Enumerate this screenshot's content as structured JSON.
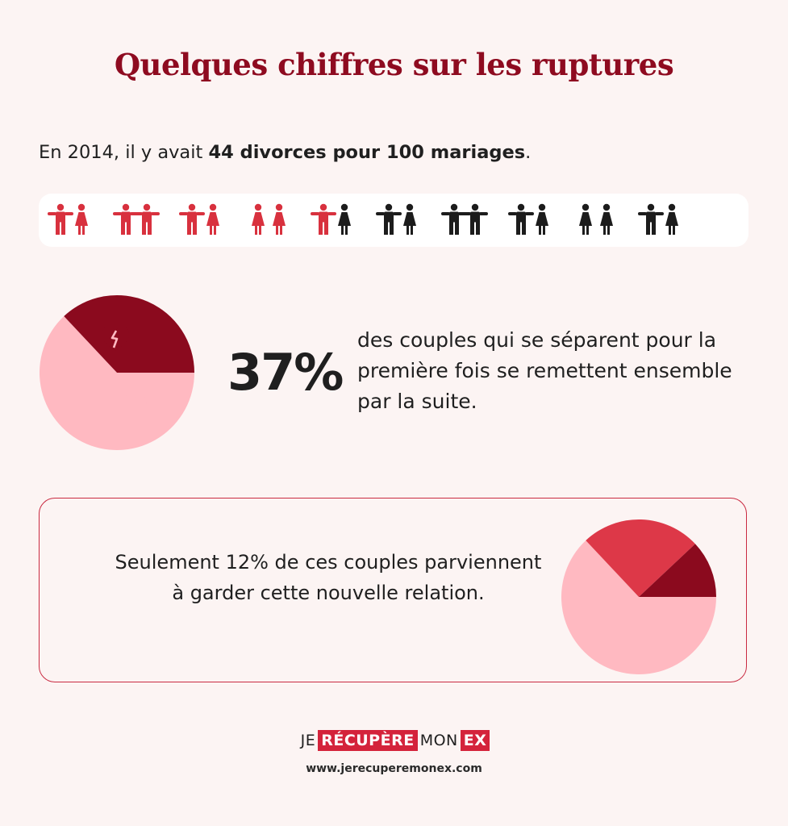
{
  "header": {
    "title": "Quelques chiffres sur les ruptures"
  },
  "stat1": {
    "prefix": "En 2014, il y avait ",
    "bold": "44 divorces pour 100 mariages",
    "suffix": "."
  },
  "stat2": {
    "value": "37%",
    "text": "des couples qui se séparent pour la première fois se remettent ensemble par la suite."
  },
  "stat3": {
    "text": "Seulement 12% de ces couples parviennent à garder cette nouvelle relation."
  },
  "footer": {
    "logo_je": "JE",
    "logo_recupere": "RÉCUPÈRE",
    "logo_mon": "MON",
    "logo_ex": "EX",
    "url": "www.jerecuperemonex.com"
  },
  "chart_data": [
    {
      "type": "pictograph",
      "groups": [
        {
          "left": "man",
          "right": "woman",
          "color": "red"
        },
        {
          "left": "man",
          "right": "man",
          "color": "red"
        },
        {
          "left": "man",
          "right": "woman",
          "color": "red"
        },
        {
          "left": "woman",
          "right": "woman",
          "color": "red"
        },
        {
          "left": "man",
          "right": "woman",
          "color": "split"
        },
        {
          "left": "man",
          "right": "woman",
          "color": "black"
        },
        {
          "left": "man",
          "right": "man",
          "color": "black"
        },
        {
          "left": "man",
          "right": "woman",
          "color": "black"
        },
        {
          "left": "woman",
          "right": "woman",
          "color": "black"
        },
        {
          "left": "man",
          "right": "woman",
          "color": "black"
        }
      ],
      "values": [
        44,
        100
      ],
      "colors": {
        "red": "#d8313e",
        "black": "#1c1c1c"
      }
    },
    {
      "type": "pie",
      "values": [
        63,
        37
      ],
      "colors": [
        "#ffb9c1",
        "#8b0a1e"
      ],
      "icons": [
        "broken-heart-icon",
        "heart-icon"
      ]
    },
    {
      "type": "pie",
      "values": [
        63,
        25,
        12
      ],
      "colors": [
        "#ffb9c1",
        "#dd3848",
        "#8b0a1e"
      ]
    }
  ]
}
